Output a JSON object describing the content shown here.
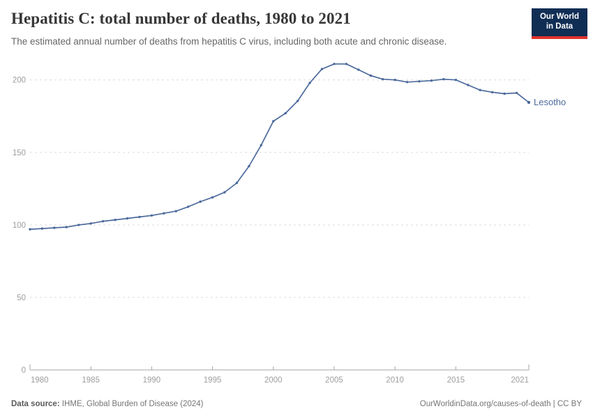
{
  "header": {
    "title": "Hepatitis C: total number of deaths, 1980 to 2021",
    "subtitle": "The estimated annual number of deaths from hepatitis C virus, including both acute and chronic disease.",
    "logo": {
      "line1": "Our World",
      "line2": "in Data",
      "bg_color": "#102d54",
      "accent_color": "#e0332c"
    }
  },
  "chart_data": {
    "type": "line",
    "title": "Hepatitis C: total number of deaths, 1980 to 2021",
    "xlabel": "",
    "ylabel": "",
    "xlim": [
      1980,
      2021
    ],
    "ylim": [
      0,
      214
    ],
    "grid": "horizontal-dashed",
    "legend_position": "end-of-line-label",
    "x_ticks": [
      1980,
      1985,
      1990,
      1995,
      2000,
      2005,
      2010,
      2015,
      2021
    ],
    "y_ticks": [
      0,
      50,
      100,
      150,
      200
    ],
    "series": [
      {
        "name": "Lesotho",
        "color": "#4c6a9c",
        "x": [
          1980,
          1981,
          1982,
          1983,
          1984,
          1985,
          1986,
          1987,
          1988,
          1989,
          1990,
          1991,
          1992,
          1993,
          1994,
          1995,
          1996,
          1997,
          1998,
          1999,
          2000,
          2001,
          2002,
          2003,
          2004,
          2005,
          2006,
          2007,
          2008,
          2009,
          2010,
          2011,
          2012,
          2013,
          2014,
          2015,
          2016,
          2017,
          2018,
          2019,
          2020,
          2021
        ],
        "values": [
          97,
          97.5,
          98,
          98.5,
          100,
          101,
          102.5,
          103.5,
          104.5,
          105.5,
          106.5,
          108,
          109.5,
          112.5,
          116,
          119,
          122.5,
          129,
          140.5,
          155,
          171.5,
          177,
          185.5,
          198,
          207.5,
          211,
          211,
          207,
          203,
          200.5,
          200,
          198.5,
          199,
          199.5,
          200.5,
          200,
          196.5,
          193,
          191.5,
          190.5,
          191,
          184.5
        ]
      }
    ]
  },
  "footer": {
    "datasource_label": "Data source:",
    "datasource_value": " IHME, Global Burden of Disease (2024)",
    "right_text": "OurWorldinData.org/causes-of-death | CC BY"
  }
}
